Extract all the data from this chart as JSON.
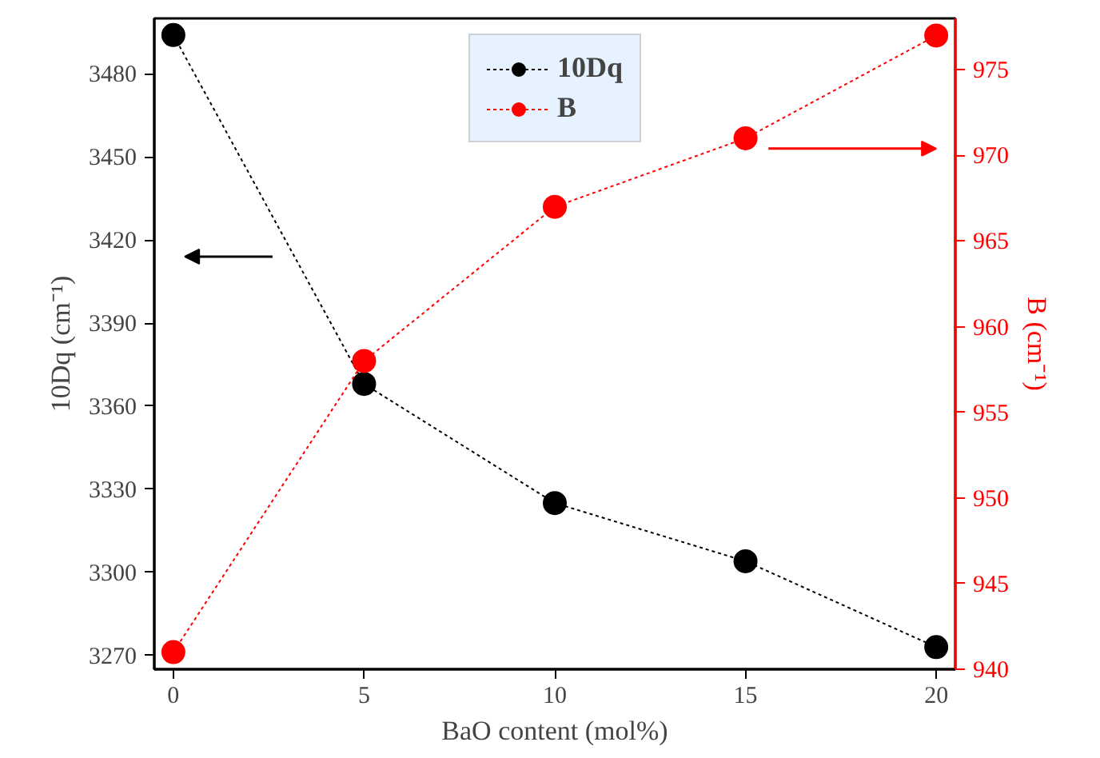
{
  "chart_data": {
    "type": "line",
    "xlabel": "BaO content (mol%)",
    "ylabel": "10Dq (cm⁻¹)",
    "y2label": "B (cm⁻¹)",
    "x": [
      0,
      5,
      10,
      15,
      20
    ],
    "series": [
      {
        "name": "10Dq",
        "color": "#000000",
        "values": [
          3494,
          3368,
          3325,
          3304,
          3273
        ]
      },
      {
        "name": "B",
        "color": "#ff0000",
        "values": [
          941,
          958,
          967,
          971,
          977
        ],
        "axis": "y2"
      }
    ],
    "xlim": [
      -0.5,
      20.5
    ],
    "xticks": [
      0,
      5,
      10,
      15,
      20
    ],
    "ylim": [
      3265,
      3500
    ],
    "yticks": [
      3270,
      3300,
      3330,
      3360,
      3390,
      3420,
      3450,
      3480
    ],
    "y2lim": [
      940,
      978
    ],
    "y2ticks": [
      940,
      945,
      950,
      955,
      960,
      965,
      970,
      975
    ],
    "grid": false,
    "legend": "top",
    "marker": "circle",
    "line_style": "dashed"
  }
}
